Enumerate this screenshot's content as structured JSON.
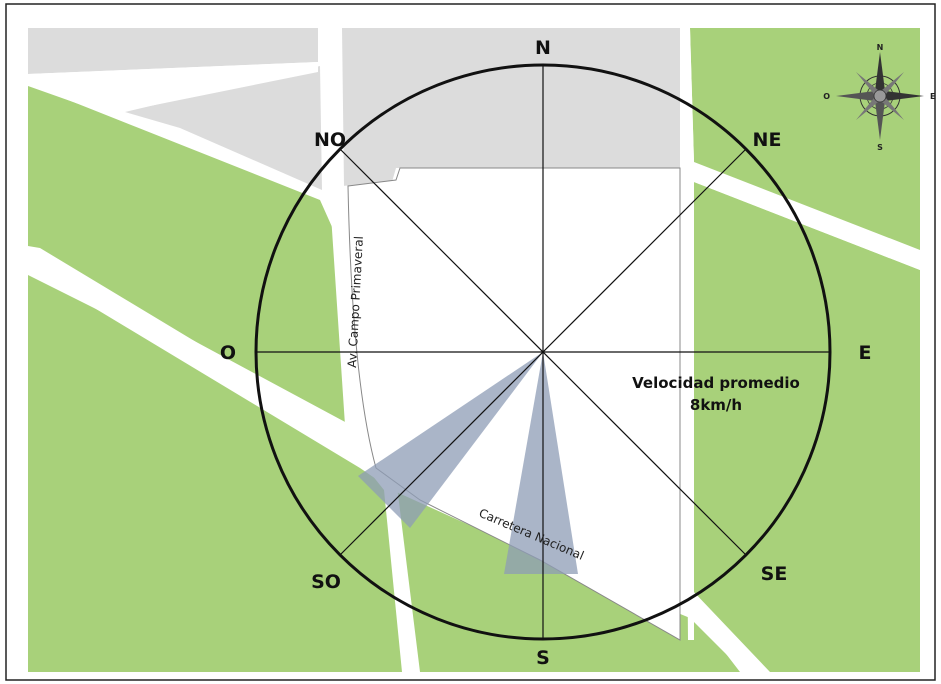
{
  "directions": {
    "n": "N",
    "ne": "NE",
    "e": "E",
    "se": "SE",
    "s": "S",
    "so": "SO",
    "o": "O",
    "no": "NO"
  },
  "roads": {
    "avenue": "Av. Campo Primaveral",
    "highway": "Carretera Nacional"
  },
  "wind": {
    "speed_line1": "Velocidad promedio",
    "speed_line2": "8km/h"
  },
  "compass_rose": {
    "n": "N",
    "e": "E",
    "s": "S",
    "o": "O"
  },
  "colors": {
    "green_area": "#a8d17a",
    "gray_block": "#dcdcdc",
    "road": "#ffffff",
    "site": "#ffffff",
    "wind_wedge": "#8d9cb6",
    "circle": "#111111"
  }
}
